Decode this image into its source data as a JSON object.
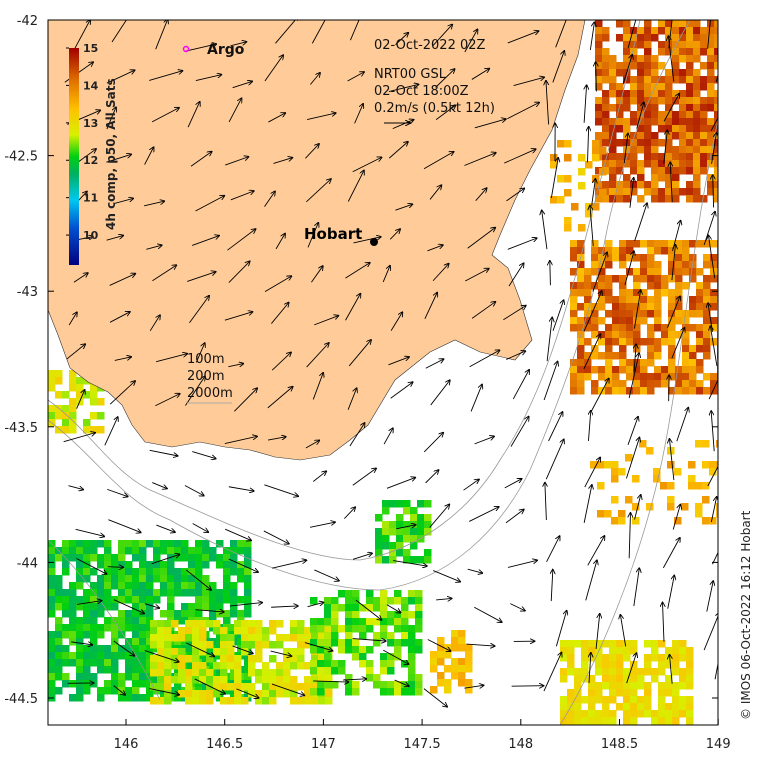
{
  "header": {
    "date": "02-Oct-2022 02Z",
    "product": "NRT00 GSL",
    "product_time": "02-Oct 18:00Z",
    "scale_label": "0.2m/s (0.5kt 12h)"
  },
  "legend": {
    "argo_label": "Argo",
    "argo_color": "#ff00ff",
    "contours": [
      "100m",
      "200m",
      "2000m"
    ]
  },
  "colorbar": {
    "label": "4h comp, p50, All Sats",
    "ticks": [
      "15",
      "14",
      "13",
      "12",
      "11",
      "10"
    ],
    "min": 9.2,
    "max": 15
  },
  "map": {
    "city": "Hobart",
    "land_color": "#ffcc99",
    "x_ticks": [
      "146",
      "146.5",
      "147",
      "147.5",
      "148",
      "148.5",
      "149"
    ],
    "y_ticks": [
      "-42",
      "-42.5",
      "-43",
      "-43.5",
      "-44",
      "-44.5"
    ]
  },
  "credit": "© IMOS 06-Oct-2022 16:12 Hobart"
}
